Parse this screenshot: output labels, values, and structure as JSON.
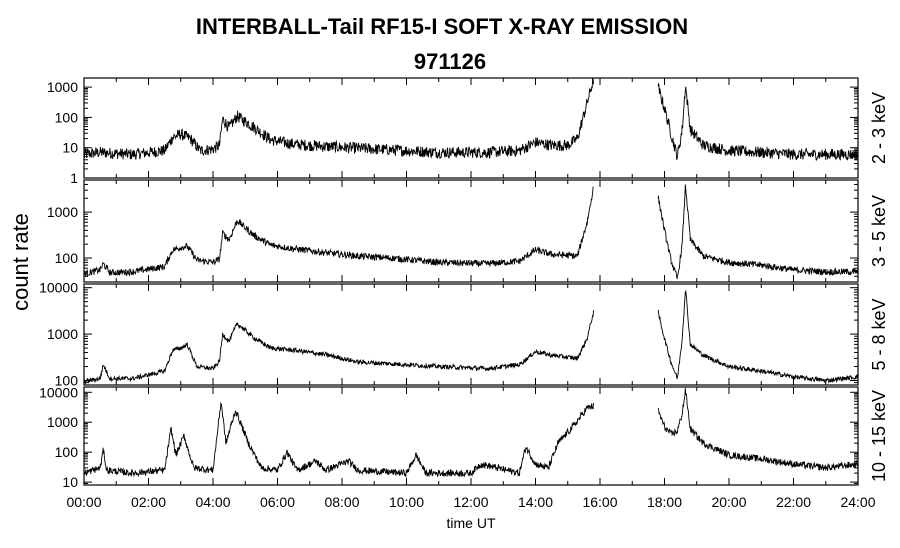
{
  "chart_data": {
    "type": "line",
    "title": "INTERBALL-Tail RF15-I SOFT X-RAY EMISSION",
    "subtitle": "971126",
    "xlabel": "time UT",
    "ylabel": "count rate",
    "x_ticks": [
      "00:00",
      "02:00",
      "04:00",
      "06:00",
      "08:00",
      "10:00",
      "12:00",
      "14:00",
      "16:00",
      "18:00",
      "20:00",
      "22:00",
      "24:00"
    ],
    "x_range_hours": [
      0,
      24
    ],
    "y_scale": "log",
    "grid": false,
    "panels": [
      {
        "name": "2 - 3 keV",
        "ylim": [
          1,
          2000
        ],
        "y_ticks": [
          {
            "value": 1,
            "label": "1"
          },
          {
            "value": 10,
            "label": "10"
          },
          {
            "value": 100,
            "label": "100"
          },
          {
            "value": 1000,
            "label": "1000"
          }
        ],
        "noise": 1.55,
        "series": [
          {
            "x": 0,
            "y": 6
          },
          {
            "x": 0.5,
            "y": 7
          },
          {
            "x": 1.5,
            "y": 6
          },
          {
            "x": 2.5,
            "y": 8
          },
          {
            "x": 2.75,
            "y": 22
          },
          {
            "x": 3.0,
            "y": 28
          },
          {
            "x": 3.3,
            "y": 20
          },
          {
            "x": 3.6,
            "y": 8
          },
          {
            "x": 4.0,
            "y": 9
          },
          {
            "x": 4.2,
            "y": 12
          },
          {
            "x": 4.3,
            "y": 90
          },
          {
            "x": 4.5,
            "y": 45
          },
          {
            "x": 4.75,
            "y": 110
          },
          {
            "x": 5.3,
            "y": 45
          },
          {
            "x": 5.8,
            "y": 18
          },
          {
            "x": 6.5,
            "y": 13
          },
          {
            "x": 7.5,
            "y": 11
          },
          {
            "x": 9,
            "y": 9
          },
          {
            "x": 10,
            "y": 8
          },
          {
            "x": 11,
            "y": 7
          },
          {
            "x": 12.5,
            "y": 7
          },
          {
            "x": 13.5,
            "y": 8
          },
          {
            "x": 14,
            "y": 15
          },
          {
            "x": 14.5,
            "y": 12
          },
          {
            "x": 15,
            "y": 12
          },
          {
            "x": 15.3,
            "y": 20
          },
          {
            "x": 15.6,
            "y": 300
          },
          {
            "x": 15.8,
            "y": 1800
          },
          {
            "gap": true
          },
          {
            "x": 17.8,
            "y": 1000
          },
          {
            "x": 18.0,
            "y": 200
          },
          {
            "x": 18.2,
            "y": 30
          },
          {
            "x": 18.4,
            "y": 5
          },
          {
            "x": 18.55,
            "y": 40
          },
          {
            "x": 18.65,
            "y": 1200
          },
          {
            "x": 18.8,
            "y": 40
          },
          {
            "x": 19.2,
            "y": 12
          },
          {
            "x": 20,
            "y": 8
          },
          {
            "x": 21,
            "y": 7
          },
          {
            "x": 22,
            "y": 6
          },
          {
            "x": 23,
            "y": 6
          },
          {
            "x": 24,
            "y": 6
          }
        ]
      },
      {
        "name": "3 - 5 keV",
        "ylim": [
          30,
          5000
        ],
        "y_ticks": [
          {
            "value": 100,
            "label": "100"
          },
          {
            "value": 1000,
            "label": "1000"
          }
        ],
        "noise": 1.18,
        "series": [
          {
            "x": 0,
            "y": 45
          },
          {
            "x": 0.5,
            "y": 55
          },
          {
            "x": 0.6,
            "y": 75
          },
          {
            "x": 0.8,
            "y": 48
          },
          {
            "x": 1.5,
            "y": 50
          },
          {
            "x": 2.5,
            "y": 65
          },
          {
            "x": 2.75,
            "y": 150
          },
          {
            "x": 3.0,
            "y": 170
          },
          {
            "x": 3.2,
            "y": 180
          },
          {
            "x": 3.5,
            "y": 90
          },
          {
            "x": 4.0,
            "y": 80
          },
          {
            "x": 4.2,
            "y": 95
          },
          {
            "x": 4.3,
            "y": 350
          },
          {
            "x": 4.5,
            "y": 250
          },
          {
            "x": 4.75,
            "y": 650
          },
          {
            "x": 5.3,
            "y": 300
          },
          {
            "x": 5.8,
            "y": 190
          },
          {
            "x": 6.5,
            "y": 160
          },
          {
            "x": 7.5,
            "y": 130
          },
          {
            "x": 8.5,
            "y": 110
          },
          {
            "x": 9.5,
            "y": 100
          },
          {
            "x": 11,
            "y": 80
          },
          {
            "x": 12.5,
            "y": 75
          },
          {
            "x": 13.5,
            "y": 85
          },
          {
            "x": 14,
            "y": 150
          },
          {
            "x": 14.5,
            "y": 120
          },
          {
            "x": 15.3,
            "y": 110
          },
          {
            "x": 15.6,
            "y": 600
          },
          {
            "x": 15.8,
            "y": 3500
          },
          {
            "gap": true
          },
          {
            "x": 17.8,
            "y": 2200
          },
          {
            "x": 18.0,
            "y": 400
          },
          {
            "x": 18.2,
            "y": 90
          },
          {
            "x": 18.4,
            "y": 35
          },
          {
            "x": 18.55,
            "y": 200
          },
          {
            "x": 18.65,
            "y": 4000
          },
          {
            "x": 18.8,
            "y": 250
          },
          {
            "x": 19.2,
            "y": 110
          },
          {
            "x": 20,
            "y": 80
          },
          {
            "x": 21,
            "y": 70
          },
          {
            "x": 22,
            "y": 55
          },
          {
            "x": 23,
            "y": 50
          },
          {
            "x": 24,
            "y": 50
          }
        ]
      },
      {
        "name": "5 - 8 keV",
        "ylim": [
          80,
          12000
        ],
        "y_ticks": [
          {
            "value": 100,
            "label": "100"
          },
          {
            "value": 1000,
            "label": "1000"
          },
          {
            "value": 10000,
            "label": "10000"
          }
        ],
        "noise": 1.12,
        "series": [
          {
            "x": 0,
            "y": 95
          },
          {
            "x": 0.5,
            "y": 110
          },
          {
            "x": 0.6,
            "y": 220
          },
          {
            "x": 0.8,
            "y": 110
          },
          {
            "x": 1.5,
            "y": 110
          },
          {
            "x": 2.5,
            "y": 160
          },
          {
            "x": 2.75,
            "y": 450
          },
          {
            "x": 3.0,
            "y": 500
          },
          {
            "x": 3.2,
            "y": 600
          },
          {
            "x": 3.5,
            "y": 200
          },
          {
            "x": 4.0,
            "y": 180
          },
          {
            "x": 4.2,
            "y": 260
          },
          {
            "x": 4.3,
            "y": 1000
          },
          {
            "x": 4.5,
            "y": 700
          },
          {
            "x": 4.75,
            "y": 1700
          },
          {
            "x": 5.3,
            "y": 800
          },
          {
            "x": 5.8,
            "y": 500
          },
          {
            "x": 6.5,
            "y": 450
          },
          {
            "x": 7.5,
            "y": 360
          },
          {
            "x": 8.5,
            "y": 250
          },
          {
            "x": 9.5,
            "y": 230
          },
          {
            "x": 11,
            "y": 200
          },
          {
            "x": 12.5,
            "y": 180
          },
          {
            "x": 13.5,
            "y": 220
          },
          {
            "x": 14,
            "y": 420
          },
          {
            "x": 14.5,
            "y": 350
          },
          {
            "x": 15.3,
            "y": 300
          },
          {
            "x": 15.6,
            "y": 800
          },
          {
            "x": 15.8,
            "y": 3000
          },
          {
            "gap": true
          },
          {
            "x": 17.8,
            "y": 3000
          },
          {
            "x": 18.0,
            "y": 800
          },
          {
            "x": 18.2,
            "y": 250
          },
          {
            "x": 18.4,
            "y": 110
          },
          {
            "x": 18.55,
            "y": 800
          },
          {
            "x": 18.65,
            "y": 10000
          },
          {
            "x": 18.8,
            "y": 600
          },
          {
            "x": 19.2,
            "y": 350
          },
          {
            "x": 20,
            "y": 200
          },
          {
            "x": 21,
            "y": 160
          },
          {
            "x": 22,
            "y": 120
          },
          {
            "x": 23,
            "y": 100
          },
          {
            "x": 24,
            "y": 120
          }
        ]
      },
      {
        "name": "10 - 15 keV",
        "ylim": [
          8,
          15000
        ],
        "y_ticks": [
          {
            "value": 10,
            "label": "10"
          },
          {
            "value": 100,
            "label": "100"
          },
          {
            "value": 1000,
            "label": "1000"
          },
          {
            "value": 10000,
            "label": "10000"
          }
        ],
        "noise": 1.3,
        "series": [
          {
            "x": 0,
            "y": 20
          },
          {
            "x": 0.5,
            "y": 30
          },
          {
            "x": 0.6,
            "y": 120
          },
          {
            "x": 0.7,
            "y": 25
          },
          {
            "x": 1.5,
            "y": 20
          },
          {
            "x": 2.5,
            "y": 25
          },
          {
            "x": 2.7,
            "y": 600
          },
          {
            "x": 2.85,
            "y": 80
          },
          {
            "x": 3.1,
            "y": 350
          },
          {
            "x": 3.4,
            "y": 30
          },
          {
            "x": 4.0,
            "y": 25
          },
          {
            "x": 4.25,
            "y": 5000
          },
          {
            "x": 4.4,
            "y": 200
          },
          {
            "x": 4.7,
            "y": 2500
          },
          {
            "x": 5.1,
            "y": 200
          },
          {
            "x": 5.5,
            "y": 30
          },
          {
            "x": 6,
            "y": 25
          },
          {
            "x": 6.3,
            "y": 100
          },
          {
            "x": 6.6,
            "y": 25
          },
          {
            "x": 7.2,
            "y": 50
          },
          {
            "x": 7.5,
            "y": 25
          },
          {
            "x": 8.2,
            "y": 50
          },
          {
            "x": 8.5,
            "y": 25
          },
          {
            "x": 10,
            "y": 20
          },
          {
            "x": 10.3,
            "y": 80
          },
          {
            "x": 10.6,
            "y": 20
          },
          {
            "x": 12,
            "y": 20
          },
          {
            "x": 12.3,
            "y": 40
          },
          {
            "x": 13.5,
            "y": 20
          },
          {
            "x": 13.7,
            "y": 150
          },
          {
            "x": 14,
            "y": 40
          },
          {
            "x": 14.4,
            "y": 30
          },
          {
            "x": 14.7,
            "y": 200
          },
          {
            "x": 15.2,
            "y": 800
          },
          {
            "x": 15.6,
            "y": 3000
          },
          {
            "x": 15.8,
            "y": 3500
          },
          {
            "gap": true
          },
          {
            "x": 17.8,
            "y": 2500
          },
          {
            "x": 18.0,
            "y": 700
          },
          {
            "x": 18.2,
            "y": 400
          },
          {
            "x": 18.4,
            "y": 500
          },
          {
            "x": 18.55,
            "y": 2000
          },
          {
            "x": 18.65,
            "y": 12000
          },
          {
            "x": 18.8,
            "y": 600
          },
          {
            "x": 19.2,
            "y": 200
          },
          {
            "x": 20,
            "y": 80
          },
          {
            "x": 21,
            "y": 60
          },
          {
            "x": 22,
            "y": 40
          },
          {
            "x": 23,
            "y": 30
          },
          {
            "x": 24,
            "y": 40
          }
        ]
      }
    ]
  }
}
